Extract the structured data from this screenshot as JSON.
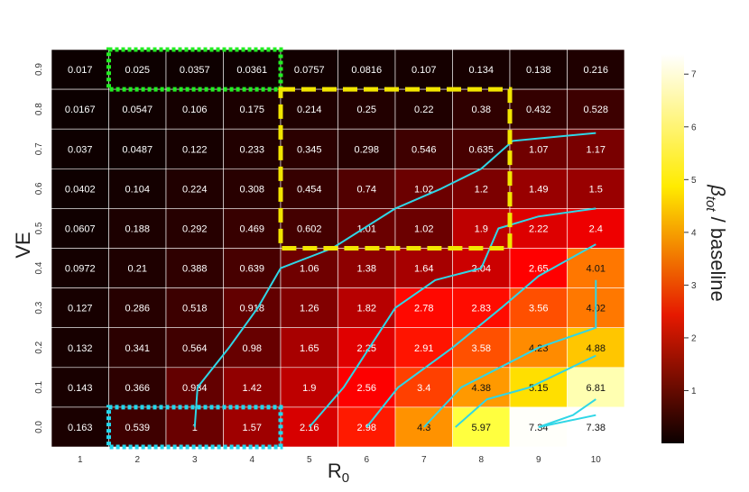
{
  "chart_data": {
    "type": "heatmap",
    "xlabel": "R",
    "xlabel_sub": "0",
    "ylabel": "VE",
    "x_ticks": [
      "1",
      "2",
      "3",
      "4",
      "5",
      "6",
      "7",
      "8",
      "9",
      "10"
    ],
    "y_ticks": [
      "0.9",
      "0.8",
      "0.7",
      "0.6",
      "0.5",
      "0.4",
      "0.3",
      "0.2",
      "0.1",
      "0.0"
    ],
    "values": [
      [
        "0.017",
        "0.025",
        "0.0357",
        "0.0361",
        "0.0757",
        "0.0816",
        "0.107",
        "0.134",
        "0.138",
        "0.216"
      ],
      [
        "0.0167",
        "0.0547",
        "0.106",
        "0.175",
        "0.214",
        "0.25",
        "0.22",
        "0.38",
        "0.432",
        "0.528"
      ],
      [
        "0.037",
        "0.0487",
        "0.122",
        "0.233",
        "0.345",
        "0.298",
        "0.546",
        "0.635",
        "1.07",
        "1.17"
      ],
      [
        "0.0402",
        "0.104",
        "0.224",
        "0.308",
        "0.454",
        "0.74",
        "1.02",
        "1.2",
        "1.49",
        "1.5"
      ],
      [
        "0.0607",
        "0.188",
        "0.292",
        "0.469",
        "0.602",
        "1.01",
        "1.02",
        "1.9",
        "2.22",
        "2.4"
      ],
      [
        "0.0972",
        "0.21",
        "0.388",
        "0.639",
        "1.06",
        "1.38",
        "1.64",
        "2.04",
        "2.65",
        "4.01"
      ],
      [
        "0.127",
        "0.286",
        "0.518",
        "0.918",
        "1.26",
        "1.82",
        "2.78",
        "2.83",
        "3.56",
        "4.02"
      ],
      [
        "0.132",
        "0.341",
        "0.564",
        "0.98",
        "1.65",
        "2.25",
        "2.91",
        "3.58",
        "4.23",
        "4.88"
      ],
      [
        "0.143",
        "0.366",
        "0.934",
        "1.42",
        "1.9",
        "2.56",
        "3.4",
        "4.38",
        "5.15",
        "6.81"
      ],
      [
        "0.163",
        "0.539",
        "1",
        "1.57",
        "2.16",
        "2.98",
        "4.3",
        "5.97",
        "7.34",
        "7.38"
      ]
    ],
    "colorbar": {
      "label": "β",
      "label_sub": "tot",
      "label_suffix": " / baseline",
      "ticks": [
        "1",
        "2",
        "3",
        "4",
        "5",
        "6",
        "7"
      ],
      "range": [
        0,
        7.38
      ],
      "colormap": "hot"
    },
    "contours": [
      [
        [
          3,
          0.0
        ],
        [
          3.05,
          0.1
        ],
        [
          3.6,
          0.2
        ],
        [
          4.1,
          0.3
        ],
        [
          4.5,
          0.4
        ],
        [
          5.4,
          0.45
        ],
        [
          6.5,
          0.55
        ],
        [
          7.3,
          0.6
        ],
        [
          8.0,
          0.65
        ],
        [
          8.55,
          0.72
        ],
        [
          10.0,
          0.74
        ]
      ],
      [
        [
          5.0,
          0.0
        ],
        [
          5.6,
          0.1
        ],
        [
          6.05,
          0.2
        ],
        [
          6.5,
          0.3
        ],
        [
          7.2,
          0.37
        ],
        [
          8.0,
          0.4
        ],
        [
          8.3,
          0.5
        ],
        [
          9.0,
          0.53
        ],
        [
          10.0,
          0.55
        ]
      ],
      [
        [
          6.0,
          0.0
        ],
        [
          6.55,
          0.1
        ],
        [
          7.5,
          0.2
        ],
        [
          8.35,
          0.3
        ],
        [
          9.0,
          0.38
        ],
        [
          10.0,
          0.46
        ]
      ],
      [
        [
          7.0,
          0.0
        ],
        [
          7.65,
          0.1
        ],
        [
          9.0,
          0.2
        ],
        [
          10.0,
          0.25
        ],
        [
          10.0,
          0.37
        ]
      ],
      [
        [
          7.55,
          0.0
        ],
        [
          8.1,
          0.07
        ],
        [
          8.85,
          0.1
        ],
        [
          10.0,
          0.18
        ]
      ],
      [
        [
          9.0,
          0.0
        ],
        [
          9.6,
          0.03
        ],
        [
          10.0,
          0.07
        ]
      ],
      [
        [
          9.0,
          0.0
        ],
        [
          10.0,
          0.03
        ]
      ]
    ],
    "highlights": [
      {
        "x_from": "2",
        "x_to": "4",
        "y_from": "0.9",
        "y_to": "0.9",
        "color": "#22ee22",
        "style": "dotted"
      },
      {
        "x_from": "5",
        "x_to": "8",
        "y_from": "0.8",
        "y_to": "0.5",
        "color": "#f2e600",
        "style": "dashed"
      },
      {
        "x_from": "2",
        "x_to": "4",
        "y_from": "0.0",
        "y_to": "0.0",
        "color": "#22d8ee",
        "style": "dotted"
      }
    ],
    "contour_color": "#2fd6e6"
  }
}
